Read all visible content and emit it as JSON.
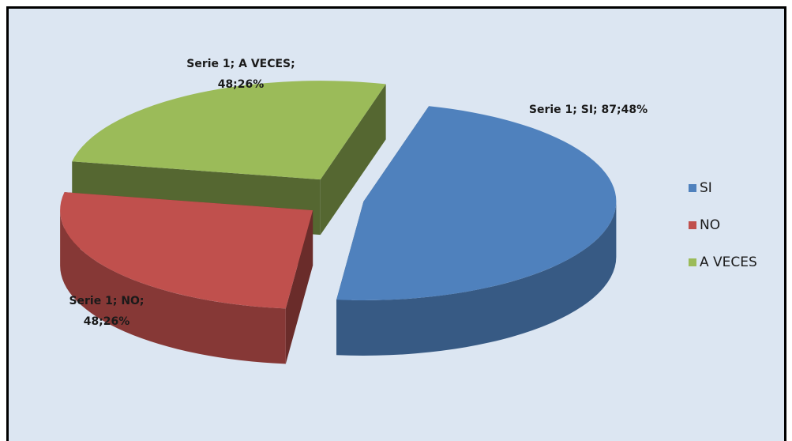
{
  "chart_data": {
    "type": "pie3d",
    "categories": [
      "SI",
      "NO",
      "A VECES"
    ],
    "series": [
      {
        "name": "Serie 1",
        "values": [
          87,
          48,
          48
        ],
        "value_labels": [
          "Serie 1; SI; 87;48%",
          "Serie 1; NO;\n48;26%",
          "Serie 1; A VECES;\n48;26%"
        ]
      }
    ],
    "colors": [
      "#4f81bd",
      "#c0504d",
      "#9bbb59"
    ],
    "legend": "right"
  }
}
